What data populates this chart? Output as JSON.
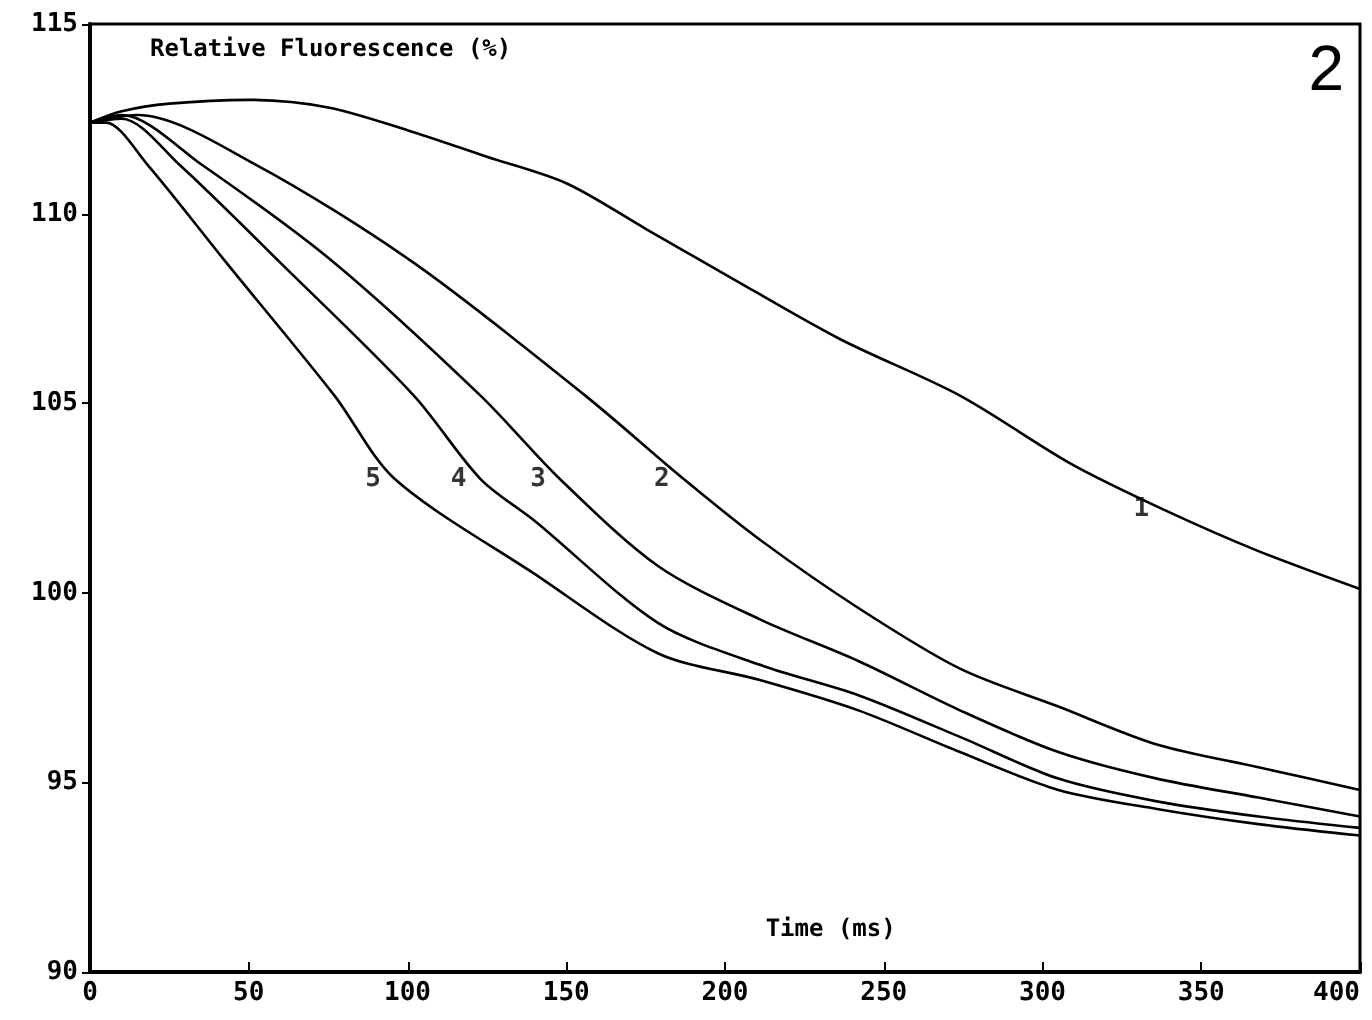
{
  "chart_data": {
    "type": "line",
    "xlabel": "Time (ms)",
    "ylabel": "Relative Fluorescence (%)",
    "series": [
      {
        "color": "#000000",
        "x": [
          0,
          10,
          25,
          50,
          75,
          100,
          125,
          150,
          175,
          200,
          236,
          274,
          309,
          338,
          368,
          400
        ],
        "values": [
          112.4,
          112.7,
          112.9,
          113.0,
          112.8,
          112.2,
          111.5,
          110.8,
          109.6,
          108.4,
          106.7,
          105.2,
          103.4,
          102.2,
          101.1,
          100.1
        ]
      },
      {
        "color": "#000000",
        "x": [
          0,
          15,
          52,
          102,
          156,
          187,
          211,
          242,
          274,
          305,
          336,
          368,
          400
        ],
        "values": [
          112.4,
          112.6,
          111.3,
          108.7,
          105.2,
          103.0,
          101.4,
          99.6,
          98.0,
          97.0,
          96.0,
          95.4,
          94.8
        ]
      },
      {
        "color": "#000000",
        "x": [
          0,
          10,
          35,
          77,
          123,
          148,
          179,
          211,
          242,
          274,
          305,
          336,
          368,
          400
        ],
        "values": [
          112.4,
          112.6,
          111.3,
          108.7,
          105.2,
          103.0,
          100.7,
          99.3,
          98.2,
          96.9,
          95.8,
          95.1,
          94.6,
          94.1
        ]
      },
      {
        "color": "#000000",
        "x": [
          0,
          10,
          28,
          60,
          102,
          123,
          140,
          179,
          211,
          242,
          274,
          305,
          336,
          368,
          400
        ],
        "values": [
          112.4,
          112.5,
          111.3,
          108.7,
          105.2,
          103.0,
          101.9,
          99.2,
          98.1,
          97.3,
          96.2,
          95.1,
          94.5,
          94.1,
          93.8
        ]
      },
      {
        "color": "#000000",
        "x": [
          0,
          5,
          18,
          43,
          77,
          96,
          140,
          179,
          211,
          242,
          274,
          305,
          336,
          368,
          400
        ],
        "values": [
          112.4,
          112.4,
          111.3,
          108.7,
          105.2,
          103.0,
          100.5,
          98.4,
          97.7,
          96.9,
          95.8,
          94.8,
          94.3,
          93.9,
          93.6
        ]
      }
    ],
    "xlim": [
      0,
      400
    ],
    "xticks": [
      0,
      50,
      100,
      150,
      200,
      250,
      300,
      350,
      400
    ],
    "ylim": [
      90,
      115
    ],
    "yticks": [
      90,
      95,
      100,
      105,
      110,
      115
    ],
    "annotations": [
      "2",
      {
        "text": "1",
        "x": 338,
        "y": 102.2
      },
      {
        "text": "2",
        "x": 187,
        "y": 103.0
      },
      {
        "text": "3",
        "x": 148,
        "y": 103.0
      },
      {
        "text": "4",
        "x": 123,
        "y": 103.0
      },
      {
        "text": "5",
        "x": 96,
        "y": 103.0
      }
    ],
    "grid": false,
    "marker": "none",
    "line_style": "solid"
  }
}
